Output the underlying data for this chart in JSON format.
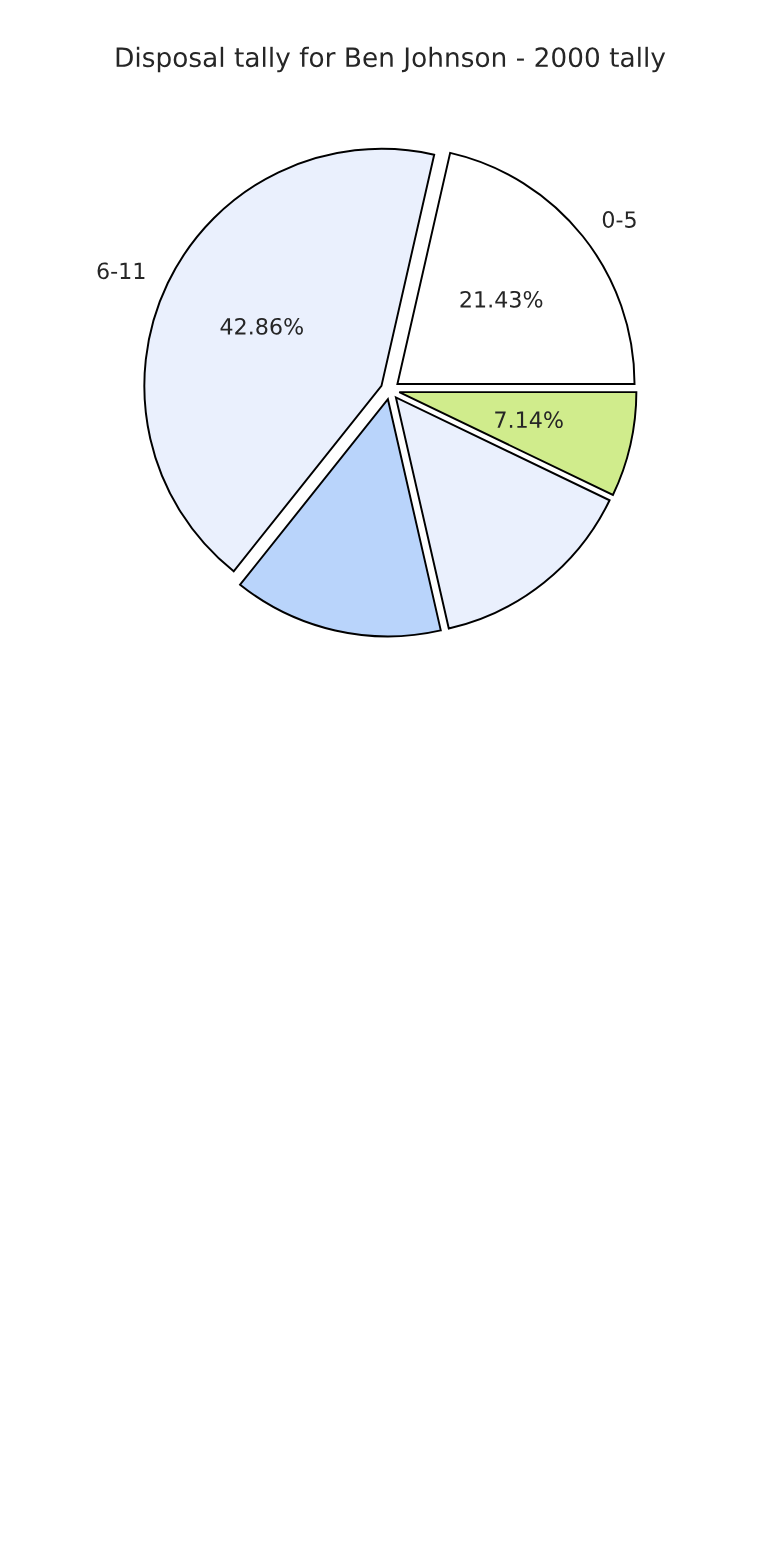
{
  "chart_data": {
    "type": "pie",
    "title": "Disposal tally for Ben Johnson - 2000 tally",
    "categories": [
      "0-5",
      "6-11",
      null,
      null,
      null
    ],
    "values": [
      21.43,
      42.86,
      14.29,
      14.28,
      7.14
    ],
    "value_labels": [
      "21.43%",
      "42.86%",
      null,
      null,
      "7.14%"
    ],
    "colors": [
      "#ffffff",
      "#eaf0fd",
      "#b9d4fb",
      "#eaf0fd",
      "#d0ec8c"
    ]
  }
}
